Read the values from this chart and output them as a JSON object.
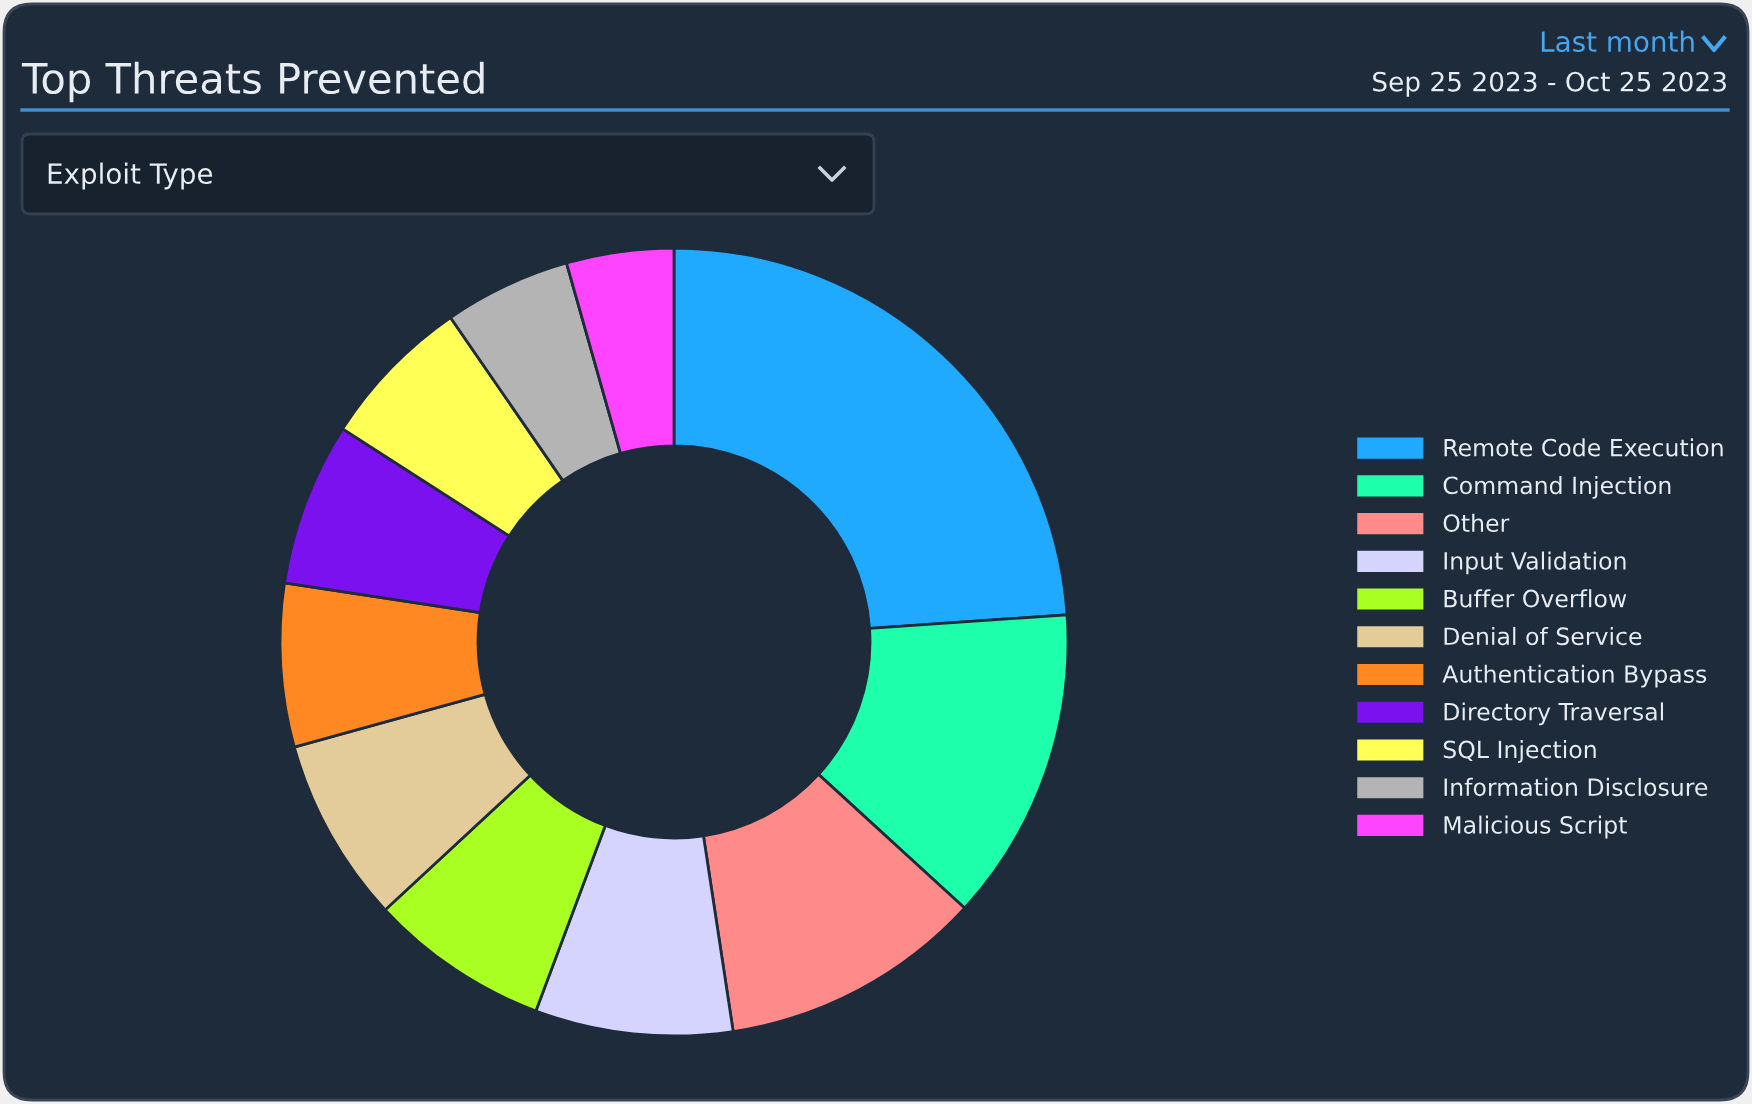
{
  "chart_data": {
    "type": "donut",
    "title": "Top Threats Prevented",
    "subtitle": "Sep 25 2023 - Oct 25 2023",
    "annotations": [
      "Last month",
      "Exploit Type"
    ],
    "categories": [
      "Remote Code Execution",
      "Command Injection",
      "Other",
      "Input Validation",
      "Buffer Overflow",
      "Denial of Service",
      "Authentication Bypass",
      "Directory Traversal",
      "SQL Injection",
      "Information Disclosure",
      "Malicious Script"
    ],
    "values": [
      23.9,
      12.9,
      10.8,
      8.1,
      7.4,
      7.6,
      6.7,
      6.7,
      6.3,
      5.2,
      4.4
    ],
    "colors": [
      "#1fa9ff",
      "#1effac",
      "#ff8a8a",
      "#d4d4ff",
      "#aaff22",
      "#e3cc99",
      "#ff8822",
      "#7a11ee",
      "#ffff55",
      "#b4b4b4",
      "#ff44ff"
    ],
    "legend": "right"
  }
}
